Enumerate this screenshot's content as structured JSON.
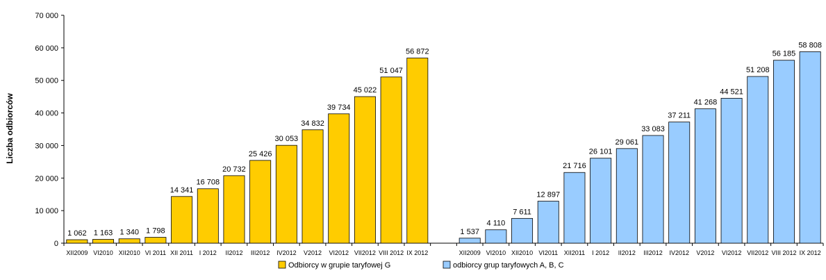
{
  "chart_data": {
    "type": "bar",
    "ylabel": "Liczba odbiorców",
    "ylim": [
      0,
      70000
    ],
    "yticks": [
      "0",
      "10 000",
      "20 000",
      "30 000",
      "40 000",
      "50 000",
      "60 000",
      "70 000"
    ],
    "grid": false,
    "legend_position": "bottom",
    "series": [
      {
        "name": "Odbiorcy w grupie taryfowej G",
        "color": "#FFCC00",
        "categories": [
          "XII2009",
          "VI2010",
          "XII2010",
          "VI 2011",
          "XII 2011",
          "I 2012",
          "II2012",
          "III2012",
          "IV2012",
          "V2012",
          "VI2012",
          "VII2012",
          "VIII 2012",
          "IX 2012"
        ],
        "values": [
          1062,
          1163,
          1340,
          1798,
          14341,
          16708,
          20732,
          25426,
          30053,
          34832,
          39734,
          45022,
          51047,
          56872
        ],
        "labels": [
          "1 062",
          "1 163",
          "1 340",
          "1 798",
          "14 341",
          "16 708",
          "20 732",
          "25 426",
          "30 053",
          "34 832",
          "39 734",
          "45 022",
          "51 047",
          "56 872"
        ]
      },
      {
        "name": "odbiorcy grup taryfowych A, B, C",
        "color": "#99CCFF",
        "categories": [
          "XII2009",
          "VI2010",
          "XII2010",
          "VI2011",
          "XII2011",
          "I 2012",
          "II2012",
          "III2012",
          "IV2012",
          "V2012",
          "VI2012",
          "VII2012",
          "VIII 2012",
          "IX 2012"
        ],
        "values": [
          1537,
          4110,
          7611,
          12897,
          21716,
          26101,
          29061,
          33083,
          37211,
          41268,
          44521,
          51208,
          56185,
          58808
        ],
        "labels": [
          "1 537",
          "4 110",
          "7 611",
          "12 897",
          "21 716",
          "26 101",
          "29 061",
          "33 083",
          "37 211",
          "41 268",
          "44 521",
          "51 208",
          "56 185",
          "58 808"
        ]
      }
    ]
  }
}
